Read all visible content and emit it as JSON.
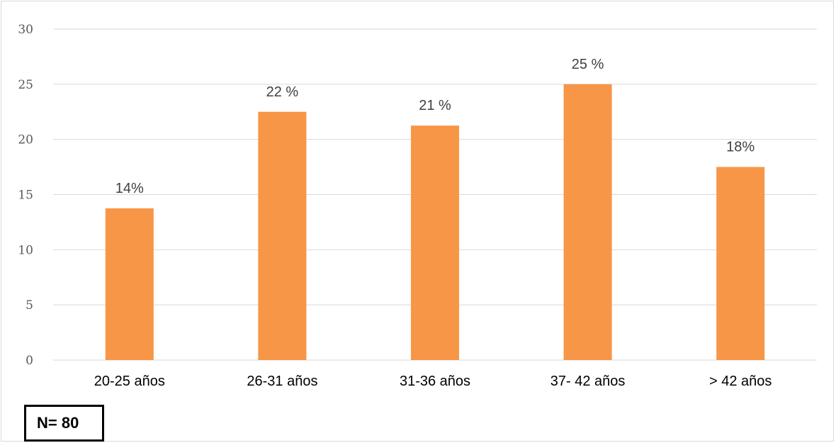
{
  "chart_data": {
    "type": "bar",
    "categories": [
      "20-25 años",
      "26-31 años",
      "31-36 años",
      "37- 42 años",
      "> 42 años"
    ],
    "values": [
      13.75,
      22.5,
      21.25,
      25,
      17.5
    ],
    "data_labels": [
      "14%",
      "22 %",
      "21 %",
      "25  %",
      "18%"
    ],
    "yticks": [
      "0",
      "5",
      "10",
      "15",
      "20",
      "25",
      "30"
    ],
    "ylim": [
      0,
      30
    ],
    "grid": true,
    "bar_color": "#F79646",
    "grid_color": "#d9d9d9"
  },
  "note": {
    "sample_size": "N= 80"
  }
}
